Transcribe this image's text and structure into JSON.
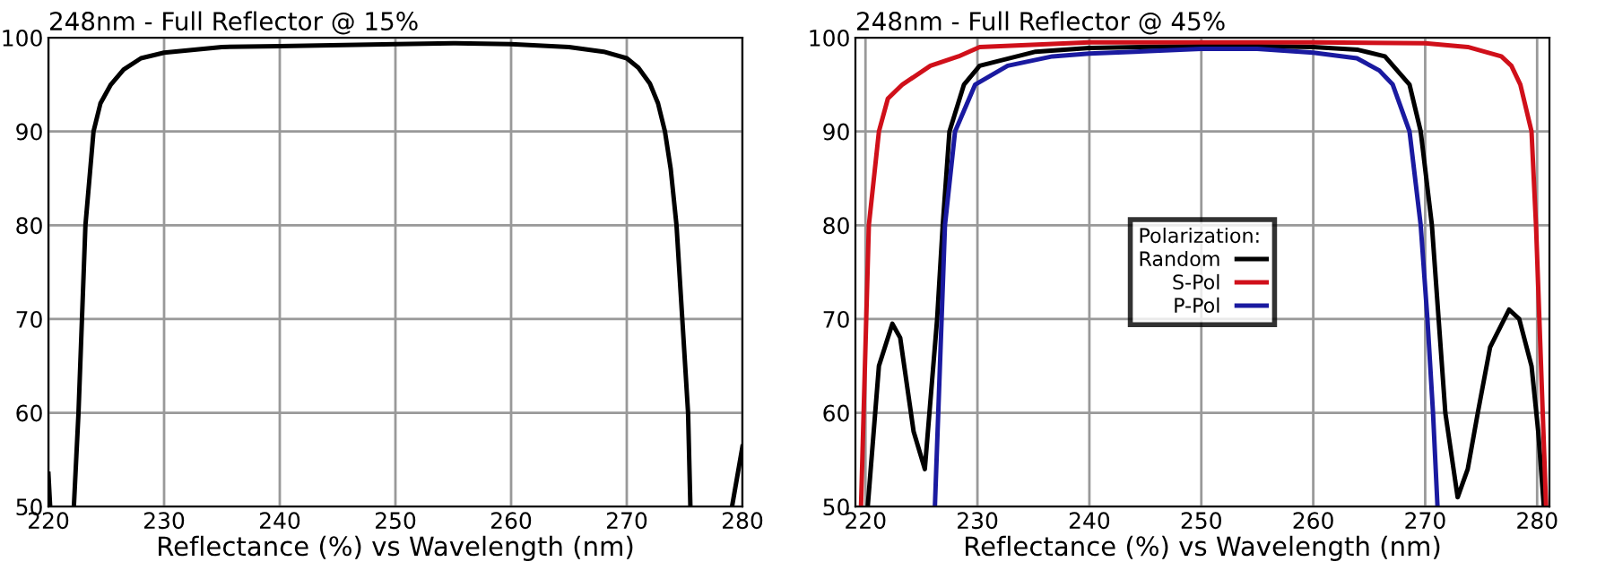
{
  "chart_data": [
    {
      "type": "line",
      "title": "248nm - Full Reflector @ 15%",
      "xlabel": "Reflectance (%) vs Wavelength (nm)",
      "xlim": [
        220,
        280
      ],
      "xticks": [
        220,
        230,
        240,
        250,
        260,
        270,
        280
      ],
      "ylim": [
        50,
        100
      ],
      "yticks": [
        50,
        60,
        70,
        80,
        90,
        100
      ],
      "grid": true,
      "legend": false,
      "series": [
        {
          "color": "#000000",
          "x": [
            220,
            220.15,
            220.2,
            222.2,
            222.6,
            223.2,
            223.9,
            224.5,
            225.4,
            226.5,
            228,
            230,
            235,
            240,
            250,
            255,
            260,
            265,
            268,
            270,
            271,
            272,
            272.7,
            273.3,
            273.8,
            274.3,
            274.8,
            275.3,
            275.5,
            275.6,
            279.1,
            280
          ],
          "values": [
            53.5,
            50,
            null,
            50,
            60,
            80,
            90,
            93,
            95,
            96.6,
            97.8,
            98.4,
            99,
            99.1,
            99.3,
            99.4,
            99.3,
            99,
            98.5,
            97.8,
            96.8,
            95.1,
            93,
            90,
            86,
            80,
            70,
            60,
            50,
            null,
            50,
            56.4
          ]
        }
      ]
    },
    {
      "type": "line",
      "title": "248nm - Full Reflector @ 45%",
      "xlabel": "Reflectance (%) vs Wavelength (nm)",
      "xlim": [
        219.1,
        281.1
      ],
      "xticks": [
        220,
        230,
        240,
        250,
        260,
        270,
        280
      ],
      "ylim": [
        50,
        100
      ],
      "yticks": [
        50,
        60,
        70,
        80,
        90,
        100
      ],
      "grid": true,
      "legend": "center",
      "legend_title": "Polarization:",
      "series": [
        {
          "name": "Random",
          "color": "#000000",
          "x": [
            220.2,
            221.2,
            222.4,
            223.1,
            224.3,
            225.3,
            226.4,
            226.9,
            227.5,
            228.8,
            230.2,
            235.2,
            240,
            250,
            255,
            260,
            264,
            266.4,
            268.6,
            269.6,
            270.6,
            271.2,
            271.8,
            272.9,
            273.8,
            274.7,
            275.8,
            277.5,
            278.4,
            279.5,
            280.1,
            280.6
          ],
          "values": [
            50,
            65,
            69.5,
            68,
            58,
            54,
            70,
            80,
            90,
            95,
            97,
            98.5,
            98.9,
            99.1,
            99.1,
            99,
            98.7,
            98,
            95,
            90,
            80,
            70,
            60,
            51,
            54,
            60,
            67,
            71,
            70,
            65,
            58,
            50
          ]
        },
        {
          "name": "S-Pol",
          "color": "#d0101a",
          "x": [
            219.6,
            220.3,
            221.2,
            222,
            223.3,
            225.8,
            228.3,
            230.2,
            240,
            250,
            260,
            270,
            273.8,
            276.8,
            277.7,
            278.5,
            279.5,
            279.9,
            280.2,
            280.5,
            280.8
          ],
          "values": [
            50,
            80,
            90,
            93.5,
            95,
            97,
            98,
            99,
            99.5,
            99.5,
            99.5,
            99.4,
            99,
            98,
            97,
            95,
            90,
            80,
            70,
            60,
            50
          ]
        },
        {
          "name": "P-Pol",
          "color": "#1a1aa0",
          "x": [
            226.2,
            226.8,
            227.1,
            228,
            229.8,
            232.7,
            236.7,
            240,
            250,
            255,
            260,
            263.9,
            265.9,
            267.1,
            268.6,
            269.6,
            270.2,
            270.7,
            271.1
          ],
          "values": [
            50,
            70,
            80,
            90,
            95,
            97,
            98,
            98.3,
            98.8,
            98.8,
            98.4,
            97.8,
            96.5,
            95,
            90,
            80,
            70,
            60,
            50
          ]
        }
      ]
    }
  ]
}
